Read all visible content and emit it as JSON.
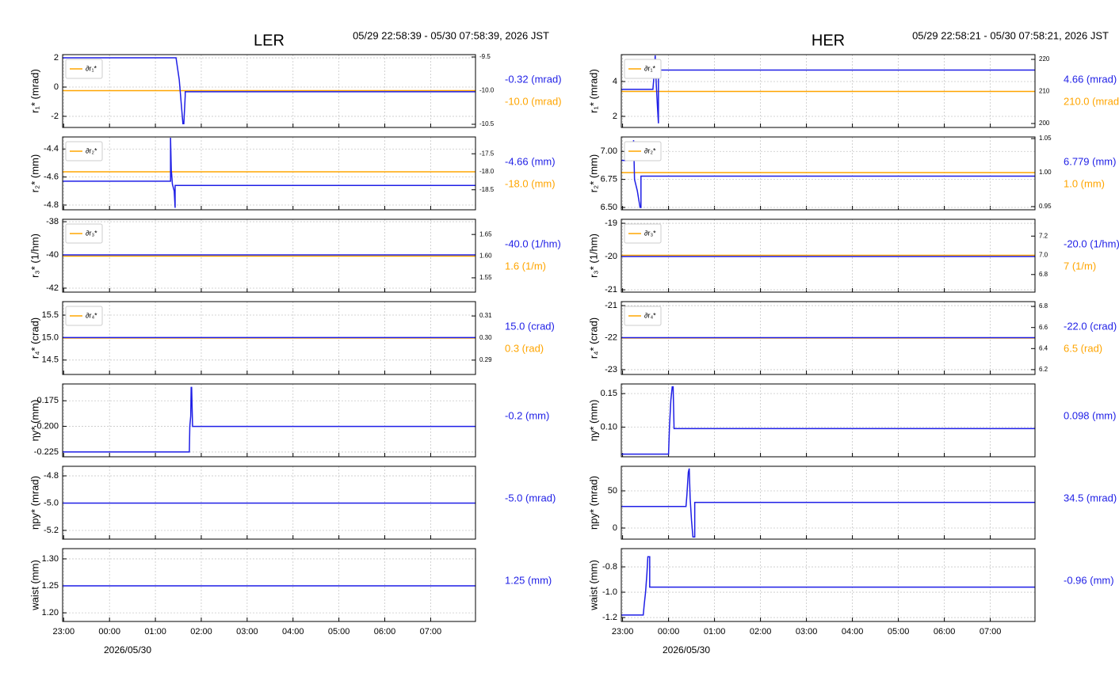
{
  "chart_data": [
    {
      "type": "line",
      "title": "LER",
      "subtitle": "05/29 22:58:39 - 05/30 07:58:39, 2026 JST",
      "ylabel": "r₁* (mrad)",
      "xlim": [
        -1.0225,
        7.9775
      ],
      "xticks": [
        -1,
        0,
        1,
        2,
        3,
        4,
        5,
        6,
        7
      ],
      "ylim": [
        -2.76,
        2.22
      ],
      "yticks": [
        2,
        0,
        -2
      ],
      "y2lim": [
        -10.547,
        -9.465
      ],
      "y2ticks": [
        -9.5,
        {
          "value": -10,
          "label": "-10.0"
        },
        -10.5
      ],
      "grid": true,
      "legend": "upper left",
      "series": [
        {
          "color": "#1f1fe6",
          "x": [
            -1.0225,
            1.45,
            1.52,
            1.6,
            1.62,
            1.65,
            1.65,
            7.9775
          ],
          "values": [
            2,
            2,
            0.5,
            -2.5,
            -2.5,
            -0.6,
            -0.32,
            -0.32
          ],
          "readout": "-0.32 (mrad)"
        },
        {
          "name": "∂r₁*",
          "color": "#ffa500",
          "axis": "y2",
          "x": [
            -1.0225,
            7.9775
          ],
          "values": [
            -10,
            -10
          ],
          "readout": "-10.0 (mrad)"
        }
      ]
    },
    {
      "type": "line",
      "ylabel": "r₂* (mm)",
      "xlim": [
        -1.0225,
        7.9775
      ],
      "xticks": [
        -1,
        0,
        1,
        2,
        3,
        4,
        5,
        6,
        7
      ],
      "ylim": [
        -4.834,
        -4.314
      ],
      "yticks": [
        -4.4,
        -4.6,
        -4.8
      ],
      "y2lim": [
        -19.056,
        -17.033
      ],
      "y2ticks": [
        -17.5,
        {
          "value": -18,
          "label": "-18.0"
        },
        -18.5
      ],
      "grid": true,
      "legend": "upper left",
      "series": [
        {
          "color": "#1f1fe6",
          "x": [
            -1.0225,
            1.33,
            1.33,
            1.35,
            1.35,
            1.37,
            1.41,
            1.43,
            1.43,
            7.9775
          ],
          "values": [
            -4.63,
            -4.63,
            -4.32,
            -4.6,
            -4.56,
            -4.65,
            -4.7,
            -4.82,
            -4.66,
            -4.66
          ],
          "readout": "-4.66 (mm)"
        },
        {
          "name": "∂r₂*",
          "color": "#ffa500",
          "axis": "y2",
          "x": [
            -1.0225,
            7.9775
          ],
          "values": [
            -18,
            -18
          ],
          "readout": "-18.0 (mm)"
        }
      ]
    },
    {
      "type": "line",
      "ylabel": "r₃* (1/hm)",
      "xlim": [
        -1.0225,
        7.9775
      ],
      "xticks": [
        -1,
        0,
        1,
        2,
        3,
        4,
        5,
        6,
        7
      ],
      "ylim": [
        -42.24,
        -37.855
      ],
      "yticks": [
        -38,
        -40,
        -42
      ],
      "y2lim": [
        1.517,
        1.685
      ],
      "y2ticks": [
        1.65,
        {
          "value": 1.6,
          "label": "1.60"
        },
        1.55
      ],
      "grid": true,
      "legend": "upper left",
      "series": [
        {
          "color": "#1f1fe6",
          "x": [
            -1.0225,
            7.9775
          ],
          "values": [
            -40,
            -40
          ],
          "readout": "-40.0 (1/hm)"
        },
        {
          "name": "∂r₃*",
          "color": "#ffa500",
          "axis": "y2",
          "x": [
            -1.0225,
            7.9775
          ],
          "values": [
            1.6,
            1.6
          ],
          "readout": "1.6 (1/m)"
        }
      ]
    },
    {
      "type": "line",
      "ylabel": "r₄* (crad)",
      "xlim": [
        -1.0225,
        7.9775
      ],
      "xticks": [
        -1,
        0,
        1,
        2,
        3,
        4,
        5,
        6,
        7
      ],
      "ylim": [
        14.18,
        15.8
      ],
      "yticks": [
        15.5,
        {
          "value": 15,
          "label": "15.0"
        },
        14.5
      ],
      "y2lim": [
        0.2835,
        0.3165
      ],
      "y2ticks": [
        0.31,
        {
          "value": 0.3,
          "label": "0.30"
        },
        0.29
      ],
      "grid": true,
      "legend": "upper left",
      "series": [
        {
          "color": "#1f1fe6",
          "x": [
            -1.0225,
            7.9775
          ],
          "values": [
            15,
            15
          ],
          "readout": "15.0 (crad)"
        },
        {
          "name": "∂r₄*",
          "color": "#ffa500",
          "axis": "y2",
          "x": [
            -1.0225,
            7.9775
          ],
          "values": [
            0.3,
            0.3
          ],
          "readout": "0.3 (rad)"
        }
      ]
    },
    {
      "type": "line",
      "ylabel": "ηy* (mm)",
      "xlim": [
        -1.0225,
        7.9775
      ],
      "xticks": [
        -1,
        0,
        1,
        2,
        3,
        4,
        5,
        6,
        7
      ],
      "ylim": [
        -0.2297,
        -0.1586
      ],
      "yticks": [
        -0.175,
        {
          "value": -0.2,
          "label": "-0.200"
        },
        -0.225
      ],
      "grid": true,
      "series": [
        {
          "color": "#1f1fe6",
          "x": [
            -1.0225,
            1.74,
            1.75,
            1.77,
            1.78,
            1.79,
            1.81,
            1.82,
            7.9775
          ],
          "values": [
            -0.225,
            -0.225,
            -0.2,
            -0.19,
            -0.162,
            -0.162,
            -0.2,
            -0.2,
            -0.2
          ],
          "readout": "-0.2 (mm)"
        }
      ]
    },
    {
      "type": "line",
      "ylabel": "ηpy* (mrad)",
      "xlim": [
        -1.0225,
        7.9775
      ],
      "xticks": [
        -1,
        0,
        1,
        2,
        3,
        4,
        5,
        6,
        7
      ],
      "ylim": [
        -5.264,
        -4.73
      ],
      "yticks": [
        -4.8,
        {
          "value": -5,
          "label": "-5.0"
        },
        -5.2
      ],
      "grid": true,
      "series": [
        {
          "color": "#1f1fe6",
          "x": [
            -1.0225,
            7.9775
          ],
          "values": [
            -5,
            -5
          ],
          "readout": "-5.0 (mrad)"
        }
      ]
    },
    {
      "type": "line",
      "ylabel": "waist (mm)",
      "xlabel": "2026/05/30",
      "xlim": [
        -1.0225,
        7.9775
      ],
      "xticks": [
        {
          "value": -1,
          "label": "23:00"
        },
        {
          "value": 0,
          "label": "00:00"
        },
        {
          "value": 1,
          "label": "01:00"
        },
        {
          "value": 2,
          "label": "02:00"
        },
        {
          "value": 3,
          "label": "03:00"
        },
        {
          "value": 4,
          "label": "04:00"
        },
        {
          "value": 5,
          "label": "05:00"
        },
        {
          "value": 6,
          "label": "06:00"
        },
        {
          "value": 7,
          "label": "07:00"
        }
      ],
      "ylim": [
        1.184,
        1.319
      ],
      "yticks": [
        {
          "value": 1.3,
          "label": "1.30"
        },
        1.25,
        {
          "value": 1.2,
          "label": "1.20"
        }
      ],
      "grid": true,
      "series": [
        {
          "color": "#1f1fe6",
          "x": [
            -1.0225,
            7.9775
          ],
          "values": [
            1.25,
            1.25
          ],
          "readout": "1.25 (mm)"
        }
      ]
    },
    {
      "type": "line",
      "title": "HER",
      "subtitle": "05/29 22:58:21 - 05/30 07:58:21, 2026 JST",
      "ylabel": "r₁* (mrad)",
      "xlim": [
        -1.0275,
        7.9725
      ],
      "xticks": [
        -1,
        0,
        1,
        2,
        3,
        4,
        5,
        6,
        7
      ],
      "ylim": [
        1.364,
        5.545
      ],
      "yticks": [
        4,
        2
      ],
      "y2lim": [
        198.77,
        221.48
      ],
      "y2ticks": [
        220,
        210,
        200
      ],
      "grid": true,
      "legend": "upper left",
      "series": [
        {
          "color": "#1f1fe6",
          "x": [
            -1.0275,
            -0.34,
            -0.32,
            -0.29,
            -0.27,
            -0.24,
            -0.22,
            -0.22,
            7.9725
          ],
          "values": [
            3.55,
            3.55,
            4.2,
            5.5,
            4,
            2.5,
            1.6,
            4.66,
            4.66
          ],
          "readout": "4.66 (mrad)"
        },
        {
          "name": "∂r₁*",
          "color": "#ffa500",
          "axis": "y2",
          "x": [
            -1.0275,
            7.9725
          ],
          "values": [
            210,
            210
          ],
          "readout": "210.0 (mrad)"
        }
      ]
    },
    {
      "type": "line",
      "ylabel": "r₂* (mm)",
      "xlim": [
        -1.0275,
        7.9725
      ],
      "xticks": [
        -1,
        0,
        1,
        2,
        3,
        4,
        5,
        6,
        7
      ],
      "ylim": [
        6.479,
        7.129
      ],
      "yticks": [
        {
          "value": 7,
          "label": "7.00"
        },
        6.75,
        {
          "value": 6.5,
          "label": "6.50"
        }
      ],
      "y2lim": [
        0.9453,
        1.0524
      ],
      "y2ticks": [
        1.05,
        {
          "value": 1,
          "label": "1.00"
        },
        0.95
      ],
      "grid": true,
      "legend": "upper left",
      "series": [
        {
          "color": "#1f1fe6",
          "x": [
            -1.0275,
            -0.8,
            -0.78,
            -0.76,
            -0.74,
            -0.68,
            -0.62,
            -0.6,
            -0.6,
            7.9725
          ],
          "values": [
            6.92,
            6.92,
            7,
            7.1,
            6.75,
            6.65,
            6.5,
            6.5,
            6.779,
            6.779
          ],
          "readout": "6.779 (mm)"
        },
        {
          "name": "∂r₂*",
          "color": "#ffa500",
          "axis": "y2",
          "x": [
            -1.0275,
            7.9725
          ],
          "values": [
            1,
            1
          ],
          "readout": "1.0 (mm)"
        }
      ]
    },
    {
      "type": "line",
      "ylabel": "r₃* (1/hm)",
      "xlim": [
        -1.0275,
        7.9725
      ],
      "xticks": [
        -1,
        0,
        1,
        2,
        3,
        4,
        5,
        6,
        7
      ],
      "ylim": [
        -21.07,
        -18.88
      ],
      "yticks": [
        -19,
        -20,
        -21
      ],
      "y2lim": [
        6.617,
        7.375
      ],
      "y2ticks": [
        7.2,
        {
          "value": 7,
          "label": "7.0"
        },
        6.8
      ],
      "grid": true,
      "legend": "upper left",
      "series": [
        {
          "color": "#1f1fe6",
          "x": [
            -1.0275,
            7.9725
          ],
          "values": [
            -20,
            -20
          ],
          "readout": "-20.0 (1/hm)"
        },
        {
          "name": "∂r₃*",
          "color": "#ffa500",
          "axis": "y2",
          "x": [
            -1.0275,
            7.9725
          ],
          "values": [
            7,
            7
          ],
          "readout": "7 (1/m)"
        }
      ]
    },
    {
      "type": "line",
      "ylabel": "r₄* (crad)",
      "xlim": [
        -1.0275,
        7.9725
      ],
      "xticks": [
        -1,
        0,
        1,
        2,
        3,
        4,
        5,
        6,
        7
      ],
      "ylim": [
        -23.15,
        -20.875
      ],
      "yticks": [
        -21,
        -22,
        -23
      ],
      "y2lim": [
        6.154,
        6.846
      ],
      "y2ticks": [
        6.8,
        6.6,
        6.4,
        6.2
      ],
      "grid": true,
      "legend": "upper left",
      "series": [
        {
          "color": "#1f1fe6",
          "x": [
            -1.0275,
            7.9725
          ],
          "values": [
            -22,
            -22
          ],
          "readout": "-22.0 (crad)"
        },
        {
          "name": "∂r₄*",
          "color": "#ffa500",
          "axis": "y2",
          "x": [
            -1.0275,
            7.9725
          ],
          "values": [
            6.5,
            6.5
          ],
          "readout": "6.5 (rad)"
        }
      ]
    },
    {
      "type": "line",
      "ylabel": "ηy* (mm)",
      "xlim": [
        -1.0275,
        7.9725
      ],
      "xticks": [
        -1,
        0,
        1,
        2,
        3,
        4,
        5,
        6,
        7
      ],
      "ylim": [
        0.056,
        0.1643
      ],
      "yticks": [
        0.15,
        {
          "value": 0.1,
          "label": "0.10"
        }
      ],
      "grid": true,
      "series": [
        {
          "color": "#1f1fe6",
          "x": [
            -1.0275,
            0,
            0.02,
            0.05,
            0.08,
            0.1,
            0.12,
            0.14,
            7.9725
          ],
          "values": [
            0.06,
            0.06,
            0.1,
            0.14,
            0.16,
            0.16,
            0.098,
            0.098,
            0.098
          ],
          "readout": "0.098 (mm)"
        }
      ]
    },
    {
      "type": "line",
      "ylabel": "ηpy* (mrad)",
      "xlim": [
        -1.0275,
        7.9725
      ],
      "xticks": [
        -1,
        0,
        1,
        2,
        3,
        4,
        5,
        6,
        7
      ],
      "ylim": [
        -14.9,
        83
      ],
      "yticks": [
        50,
        0
      ],
      "grid": true,
      "series": [
        {
          "color": "#1f1fe6",
          "x": [
            -1.0275,
            0.38,
            0.4,
            0.43,
            0.45,
            0.47,
            0.5,
            0.53,
            0.55,
            0.57,
            0.57,
            7.9725
          ],
          "values": [
            29,
            29,
            45,
            75,
            80,
            40,
            10,
            -12,
            -12,
            -12,
            34.5,
            34.5
          ],
          "readout": "34.5 (mrad)"
        }
      ]
    },
    {
      "type": "line",
      "ylabel": "waist (mm)",
      "xlabel": "2026/05/30",
      "xlim": [
        -1.0275,
        7.9725
      ],
      "xticks": [
        {
          "value": -1,
          "label": "23:00"
        },
        {
          "value": 0,
          "label": "00:00"
        },
        {
          "value": 1,
          "label": "01:00"
        },
        {
          "value": 2,
          "label": "02:00"
        },
        {
          "value": 3,
          "label": "03:00"
        },
        {
          "value": 4,
          "label": "04:00"
        },
        {
          "value": 5,
          "label": "05:00"
        },
        {
          "value": 6,
          "label": "06:00"
        },
        {
          "value": 7,
          "label": "07:00"
        }
      ],
      "ylim": [
        -1.231,
        -0.656
      ],
      "yticks": [
        -0.8,
        {
          "value": -1,
          "label": "-1.0"
        },
        -1.2
      ],
      "grid": true,
      "series": [
        {
          "color": "#1f1fe6",
          "x": [
            -1.0275,
            -0.55,
            -0.53,
            -0.5,
            -0.47,
            -0.45,
            -0.43,
            -0.41,
            -0.41,
            7.9725
          ],
          "values": [
            -1.18,
            -1.18,
            -1.1,
            -1,
            -0.85,
            -0.72,
            -0.72,
            -0.72,
            -0.96,
            -0.96
          ],
          "readout": "-0.96 (mm)"
        }
      ]
    }
  ]
}
